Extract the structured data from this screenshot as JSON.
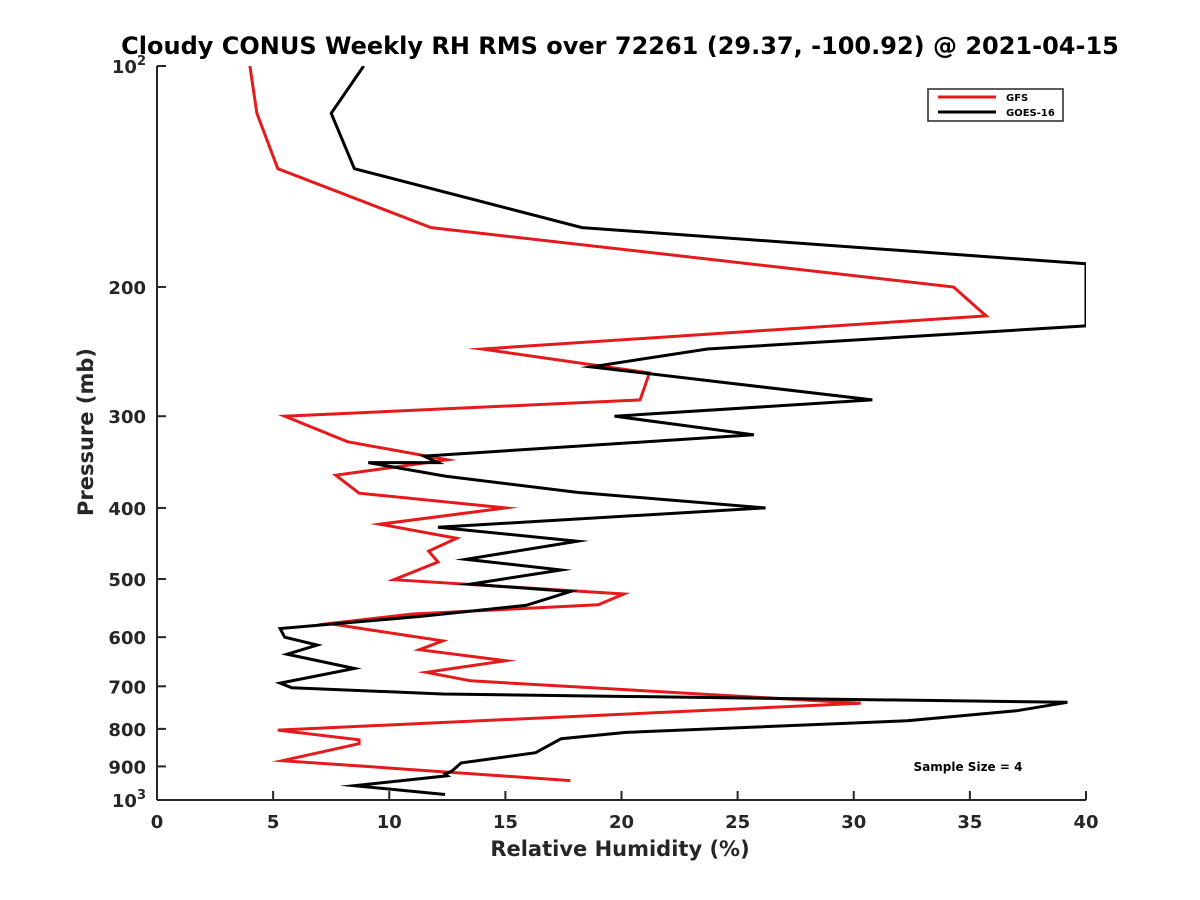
{
  "chart_data": {
    "type": "line",
    "title": "Cloudy CONUS Weekly RH RMS over 72261 (29.37, -100.92) @ 2021-04-15",
    "xlabel": "Relative Humidity (%)",
    "ylabel": "Pressure (mb)",
    "xlim": [
      0,
      40
    ],
    "ylim": [
      100,
      1000
    ],
    "y_scale": "log",
    "y_reversed": true,
    "grid": false,
    "legend_position": "top-right",
    "x_ticks": [
      {
        "value": 0,
        "label": "0"
      },
      {
        "value": 5,
        "label": "5"
      },
      {
        "value": 10,
        "label": "10"
      },
      {
        "value": 15,
        "label": "15"
      },
      {
        "value": 20,
        "label": "20"
      },
      {
        "value": 25,
        "label": "25"
      },
      {
        "value": 30,
        "label": "30"
      },
      {
        "value": 35,
        "label": "35"
      },
      {
        "value": 40,
        "label": "40"
      }
    ],
    "y_ticks": [
      {
        "value": 100,
        "label": "10",
        "sup": "2"
      },
      {
        "value": 200,
        "label": "200",
        "sup": ""
      },
      {
        "value": 300,
        "label": "300",
        "sup": ""
      },
      {
        "value": 400,
        "label": "400",
        "sup": ""
      },
      {
        "value": 500,
        "label": "500",
        "sup": ""
      },
      {
        "value": 600,
        "label": "600",
        "sup": ""
      },
      {
        "value": 700,
        "label": "700",
        "sup": ""
      },
      {
        "value": 800,
        "label": "800",
        "sup": ""
      },
      {
        "value": 900,
        "label": "900",
        "sup": ""
      },
      {
        "value": 1000,
        "label": "10",
        "sup": "3"
      }
    ],
    "annotation": "Sample Size = 4",
    "series": [
      {
        "name": "GFS",
        "color": "#e41a1c",
        "points": [
          [
            4.0,
            100
          ],
          [
            4.3,
            116
          ],
          [
            5.2,
            138
          ],
          [
            11.8,
            166
          ],
          [
            34.3,
            200
          ],
          [
            35.7,
            219
          ],
          [
            14.0,
            243
          ],
          [
            21.2,
            262
          ],
          [
            20.8,
            285
          ],
          [
            5.5,
            300
          ],
          [
            8.2,
            325
          ],
          [
            12.5,
            344
          ],
          [
            7.7,
            361
          ],
          [
            8.7,
            382
          ],
          [
            15.0,
            400
          ],
          [
            9.6,
            421
          ],
          [
            12.9,
            440
          ],
          [
            11.7,
            458
          ],
          [
            12.1,
            474
          ],
          [
            10.2,
            501
          ],
          [
            20.1,
            524
          ],
          [
            19.0,
            542
          ],
          [
            11.0,
            558
          ],
          [
            7.4,
            575
          ],
          [
            12.3,
            607
          ],
          [
            11.3,
            624
          ],
          [
            15.0,
            646
          ],
          [
            11.6,
            670
          ],
          [
            13.5,
            688
          ],
          [
            30.3,
            738
          ],
          [
            5.2,
            803
          ],
          [
            8.7,
            828
          ],
          [
            8.7,
            838
          ],
          [
            5.4,
            884
          ],
          [
            9.0,
            900
          ],
          [
            17.8,
            941
          ]
        ]
      },
      {
        "name": "GOES-16",
        "color": "#000000",
        "points": [
          [
            8.9,
            100
          ],
          [
            7.5,
            116
          ],
          [
            8.5,
            138
          ],
          [
            18.3,
            166
          ],
          [
            40.0,
            186
          ],
          [
            40.0,
            226
          ],
          [
            23.7,
            243
          ],
          [
            18.7,
            257
          ],
          [
            30.8,
            285
          ],
          [
            19.7,
            300
          ],
          [
            25.7,
            318
          ],
          [
            11.5,
            340
          ],
          [
            12.1,
            347
          ],
          [
            9.1,
            347
          ],
          [
            12.4,
            362
          ],
          [
            18.1,
            381
          ],
          [
            26.2,
            400
          ],
          [
            12.1,
            425
          ],
          [
            18.1,
            444
          ],
          [
            13.3,
            470
          ],
          [
            17.4,
            486
          ],
          [
            13.5,
            508
          ],
          [
            17.8,
            520
          ],
          [
            15.9,
            543
          ],
          [
            11.4,
            562
          ],
          [
            5.3,
            584
          ],
          [
            5.5,
            600
          ],
          [
            6.9,
            615
          ],
          [
            5.6,
            633
          ],
          [
            8.5,
            662
          ],
          [
            5.3,
            693
          ],
          [
            5.8,
            703
          ],
          [
            12.3,
            717
          ],
          [
            39.2,
            736
          ],
          [
            37.0,
            756
          ],
          [
            32.3,
            780
          ],
          [
            20.2,
            809
          ],
          [
            17.4,
            825
          ],
          [
            16.3,
            862
          ],
          [
            13.1,
            890
          ],
          [
            12.7,
            913
          ],
          [
            12.4,
            922
          ],
          [
            12.5,
            927
          ],
          [
            8.5,
            956
          ],
          [
            12.4,
            983
          ]
        ]
      }
    ]
  }
}
